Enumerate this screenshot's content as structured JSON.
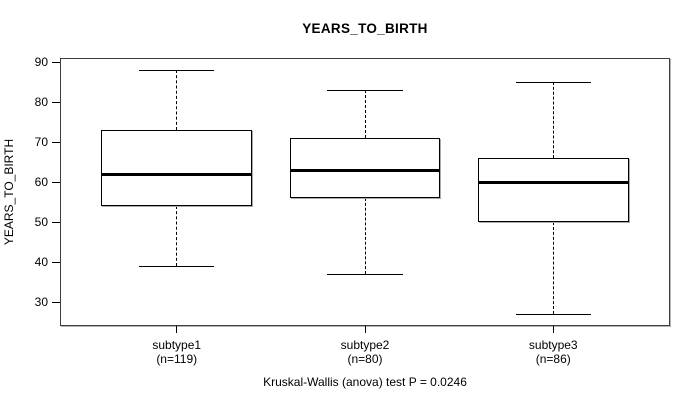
{
  "chart_data": {
    "type": "boxplot",
    "title": "YEARS_TO_BIRTH",
    "ylabel": "YEARS_TO_BIRTH",
    "caption": "Kruskal-Wallis (anova) test P = 0.0246",
    "y_ticks": [
      30,
      40,
      50,
      60,
      70,
      80,
      90
    ],
    "ylim": [
      24,
      91
    ],
    "grid": false,
    "legend": "none",
    "groups": [
      {
        "label": "subtype1",
        "sublabel": "(n=119)",
        "whisker_low": 39,
        "q1": 54,
        "median": 62,
        "q3": 73,
        "whisker_high": 88
      },
      {
        "label": "subtype2",
        "sublabel": "(n=80)",
        "whisker_low": 37,
        "q1": 56,
        "median": 63,
        "q3": 71,
        "whisker_high": 83
      },
      {
        "label": "subtype3",
        "sublabel": "(n=86)",
        "whisker_low": 27,
        "q1": 50,
        "median": 60,
        "q3": 66,
        "whisker_high": 85
      }
    ],
    "colors": {
      "box_border": "#000000",
      "median": "#000000",
      "frame": "#3d3d3d",
      "text": "#000000",
      "background": "#ffffff"
    }
  }
}
